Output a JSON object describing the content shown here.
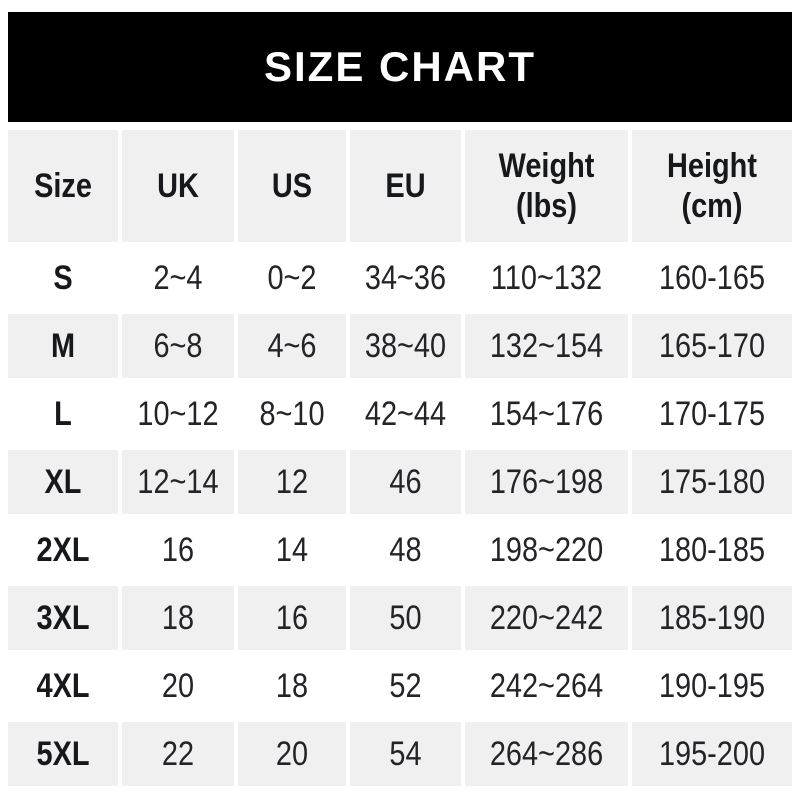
{
  "title": "SIZE CHART",
  "colors": {
    "banner_bg": "#000000",
    "banner_text": "#ffffff",
    "stripe_row_bg": "#f0f0f0",
    "plain_row_bg": "#ffffff",
    "header_text": "#17181c",
    "body_text": "#232427"
  },
  "chart_data": {
    "type": "table",
    "title": "SIZE CHART",
    "columns": [
      "Size",
      "UK",
      "US",
      "EU",
      "Weight (lbs)",
      "Height (cm)"
    ],
    "column_header_lines": [
      [
        "Size"
      ],
      [
        "UK"
      ],
      [
        "US"
      ],
      [
        "EU"
      ],
      [
        "Weight",
        "(lbs)"
      ],
      [
        "Height",
        "(cm)"
      ]
    ],
    "rows": [
      [
        "S",
        "2~4",
        "0~2",
        "34~36",
        "110~132",
        "160-165"
      ],
      [
        "M",
        "6~8",
        "4~6",
        "38~40",
        "132~154",
        "165-170"
      ],
      [
        "L",
        "10~12",
        "8~10",
        "42~44",
        "154~176",
        "170-175"
      ],
      [
        "XL",
        "12~14",
        "12",
        "46",
        "176~198",
        "175-180"
      ],
      [
        "2XL",
        "16",
        "14",
        "48",
        "198~220",
        "180-185"
      ],
      [
        "3XL",
        "18",
        "16",
        "50",
        "220~242",
        "185-190"
      ],
      [
        "4XL",
        "20",
        "18",
        "52",
        "242~264",
        "190-195"
      ],
      [
        "5XL",
        "22",
        "20",
        "54",
        "264~286",
        "195-200"
      ]
    ]
  }
}
